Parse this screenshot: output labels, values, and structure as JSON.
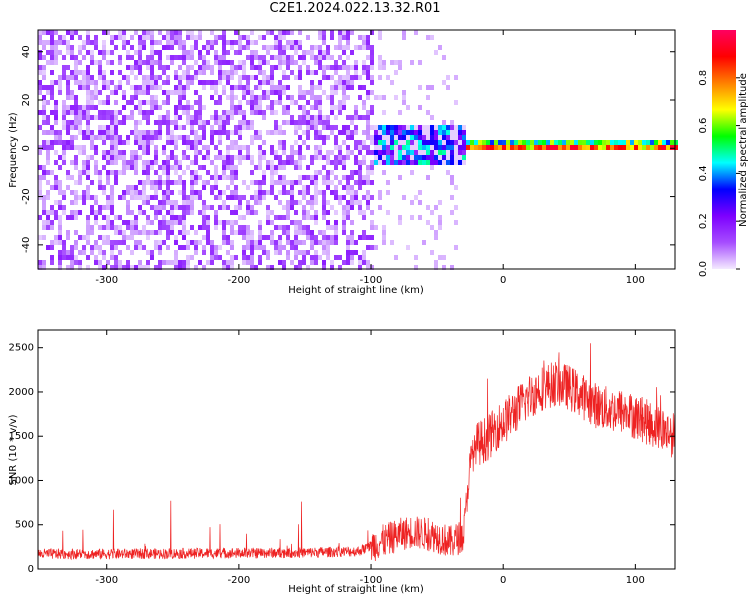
{
  "title": "C2E1.2024.022.13.32.R01",
  "chart_data": [
    {
      "type": "heatmap",
      "xlabel": "Height of straight line (km)",
      "ylabel": "Frequency (Hz)",
      "xlim": [
        -352,
        130
      ],
      "ylim": [
        -50,
        49
      ],
      "x_ticks": [
        -300,
        -200,
        -100,
        0,
        100
      ],
      "y_ticks": [
        -40,
        -20,
        0,
        20,
        40
      ],
      "colorbar": {
        "label": "Normalized spectral amplitude",
        "range": [
          0,
          1
        ],
        "ticks": [
          0.0,
          0.2,
          0.4,
          0.6,
          0.8
        ],
        "colormap": [
          "#f4eaff",
          "#a64dff",
          "#7d00ff",
          "#0000ff",
          "#00ffff",
          "#00ff00",
          "#ffff00",
          "#ff8000",
          "#ff0000",
          "#ff0060"
        ]
      },
      "regions": [
        {
          "x": [
            -352,
            -100
          ],
          "freq": [
            -50,
            49
          ],
          "level": 0.25
        },
        {
          "x": [
            -100,
            -35
          ],
          "freq": [
            -50,
            49
          ],
          "level": 0.08
        },
        {
          "x": [
            -100,
            -30
          ],
          "freq": [
            -6,
            10
          ],
          "level": 0.3
        },
        {
          "x": [
            -30,
            130
          ],
          "freq": [
            0,
            4
          ],
          "level": 0.45
        }
      ]
    },
    {
      "type": "line",
      "xlabel": "Height of straight line (km)",
      "ylabel": "SNR (10 * v/v)",
      "xlim": [
        -352,
        130
      ],
      "ylim": [
        0,
        2700
      ],
      "x_ticks": [
        -300,
        -200,
        -100,
        0,
        100
      ],
      "y_ticks": [
        0,
        500,
        1000,
        1500,
        2000,
        2500
      ],
      "series": [
        {
          "color": "#ee2222",
          "x": [
            -352,
            -300,
            -250,
            -200,
            -150,
            -110,
            -100,
            -90,
            -80,
            -70,
            -60,
            -50,
            -40,
            -30,
            -25,
            -20,
            -15,
            -10,
            -5,
            0,
            10,
            20,
            30,
            40,
            50,
            60,
            70,
            80,
            90,
            100,
            110,
            120,
            130
          ],
          "y": [
            170,
            170,
            175,
            180,
            185,
            200,
            260,
            320,
            380,
            420,
            400,
            370,
            300,
            380,
            1200,
            1400,
            1450,
            1500,
            1600,
            1650,
            1800,
            1950,
            2050,
            2100,
            2050,
            1950,
            1850,
            1800,
            1780,
            1720,
            1650,
            1580,
            1500
          ]
        }
      ]
    }
  ]
}
